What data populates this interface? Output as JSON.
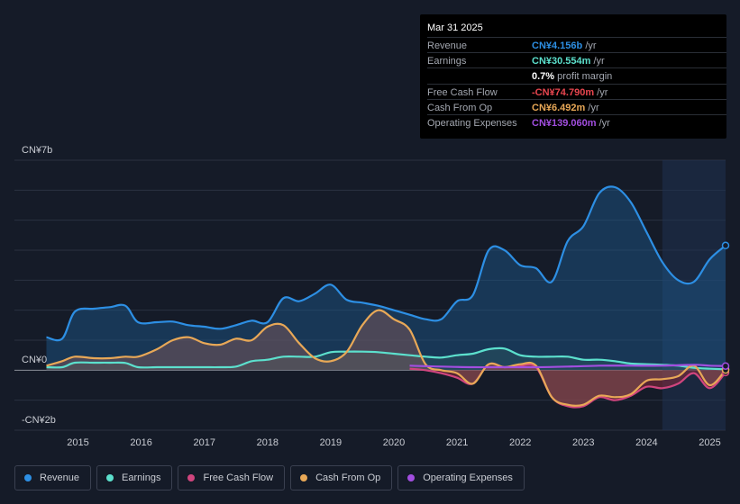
{
  "tooltip": {
    "date": "Mar 31 2025",
    "rows": [
      {
        "label": "Revenue",
        "value": "CN¥4.156b",
        "unit": "/yr",
        "color": "#2d8fe4"
      },
      {
        "label": "Earnings",
        "value": "CN¥30.554m",
        "unit": "/yr",
        "color": "#5ce0cd"
      },
      {
        "label": "",
        "value": "0.7%",
        "unit": "profit margin",
        "color": "#ffffff"
      },
      {
        "label": "Free Cash Flow",
        "value": "-CN¥74.790m",
        "unit": "/yr",
        "color": "#e8464f"
      },
      {
        "label": "Cash From Op",
        "value": "CN¥6.492m",
        "unit": "/yr",
        "color": "#e8a857"
      },
      {
        "label": "Operating Expenses",
        "value": "CN¥139.060m",
        "unit": "/yr",
        "color": "#a24ee0"
      }
    ]
  },
  "legend": [
    {
      "label": "Revenue",
      "color": "#2d8fe4"
    },
    {
      "label": "Earnings",
      "color": "#5ce0cd"
    },
    {
      "label": "Free Cash Flow",
      "color": "#d0457e"
    },
    {
      "label": "Cash From Op",
      "color": "#e8a857"
    },
    {
      "label": "Operating Expenses",
      "color": "#a24ee0"
    }
  ],
  "chart_data": {
    "type": "area",
    "ylim": [
      -2,
      7
    ],
    "y_tick_labels": [
      {
        "value": 7,
        "label": "CN¥7b"
      },
      {
        "value": 0,
        "label": "CN¥0"
      },
      {
        "value": -2,
        "label": "-CN¥2b"
      }
    ],
    "x_tick_labels": [
      "2015",
      "2016",
      "2017",
      "2018",
      "2019",
      "2020",
      "2021",
      "2022",
      "2023",
      "2024",
      "2025"
    ],
    "x_tick_values": [
      2015,
      2016,
      2017,
      2018,
      2019,
      2020,
      2021,
      2022,
      2023,
      2024,
      2025
    ],
    "xlim": [
      2014.45,
      2025.25
    ],
    "highlight_start": 2024.25,
    "series": [
      {
        "name": "Revenue",
        "color": "#2d8fe4",
        "points": [
          [
            2014.5,
            1.1
          ],
          [
            2014.75,
            1.05
          ],
          [
            2014.95,
            1.95
          ],
          [
            2015.25,
            2.05
          ],
          [
            2015.5,
            2.1
          ],
          [
            2015.75,
            2.15
          ],
          [
            2015.95,
            1.6
          ],
          [
            2016.25,
            1.6
          ],
          [
            2016.5,
            1.62
          ],
          [
            2016.75,
            1.5
          ],
          [
            2017.0,
            1.45
          ],
          [
            2017.25,
            1.38
          ],
          [
            2017.5,
            1.5
          ],
          [
            2017.75,
            1.65
          ],
          [
            2018.0,
            1.6
          ],
          [
            2018.25,
            2.4
          ],
          [
            2018.5,
            2.3
          ],
          [
            2018.75,
            2.55
          ],
          [
            2019.0,
            2.85
          ],
          [
            2019.25,
            2.35
          ],
          [
            2019.5,
            2.25
          ],
          [
            2019.75,
            2.15
          ],
          [
            2020.0,
            2.0
          ],
          [
            2020.25,
            1.85
          ],
          [
            2020.5,
            1.7
          ],
          [
            2020.75,
            1.7
          ],
          [
            2021.0,
            2.3
          ],
          [
            2021.25,
            2.5
          ],
          [
            2021.5,
            4.0
          ],
          [
            2021.75,
            4.0
          ],
          [
            2022.0,
            3.5
          ],
          [
            2022.25,
            3.4
          ],
          [
            2022.5,
            2.95
          ],
          [
            2022.75,
            4.3
          ],
          [
            2023.0,
            4.8
          ],
          [
            2023.25,
            5.9
          ],
          [
            2023.5,
            6.1
          ],
          [
            2023.75,
            5.6
          ],
          [
            2024.0,
            4.6
          ],
          [
            2024.25,
            3.6
          ],
          [
            2024.5,
            3.0
          ],
          [
            2024.75,
            2.95
          ],
          [
            2025.0,
            3.7
          ],
          [
            2025.25,
            4.156
          ]
        ]
      },
      {
        "name": "Earnings",
        "color": "#5ce0cd",
        "points": [
          [
            2014.5,
            0.1
          ],
          [
            2014.75,
            0.1
          ],
          [
            2014.95,
            0.25
          ],
          [
            2015.25,
            0.25
          ],
          [
            2015.5,
            0.25
          ],
          [
            2015.75,
            0.24
          ],
          [
            2015.95,
            0.1
          ],
          [
            2016.25,
            0.1
          ],
          [
            2016.5,
            0.1
          ],
          [
            2016.75,
            0.1
          ],
          [
            2017.0,
            0.1
          ],
          [
            2017.25,
            0.1
          ],
          [
            2017.5,
            0.12
          ],
          [
            2017.75,
            0.3
          ],
          [
            2018.0,
            0.35
          ],
          [
            2018.25,
            0.45
          ],
          [
            2018.5,
            0.45
          ],
          [
            2018.75,
            0.45
          ],
          [
            2019.0,
            0.6
          ],
          [
            2019.25,
            0.62
          ],
          [
            2019.5,
            0.62
          ],
          [
            2019.75,
            0.6
          ],
          [
            2020.0,
            0.55
          ],
          [
            2020.25,
            0.5
          ],
          [
            2020.5,
            0.45
          ],
          [
            2020.75,
            0.42
          ],
          [
            2021.0,
            0.5
          ],
          [
            2021.25,
            0.55
          ],
          [
            2021.5,
            0.7
          ],
          [
            2021.75,
            0.72
          ],
          [
            2022.0,
            0.5
          ],
          [
            2022.25,
            0.45
          ],
          [
            2022.5,
            0.45
          ],
          [
            2022.75,
            0.45
          ],
          [
            2023.0,
            0.35
          ],
          [
            2023.25,
            0.35
          ],
          [
            2023.5,
            0.3
          ],
          [
            2023.75,
            0.22
          ],
          [
            2024.0,
            0.2
          ],
          [
            2024.25,
            0.18
          ],
          [
            2024.5,
            0.15
          ],
          [
            2024.75,
            0.08
          ],
          [
            2025.0,
            0.05
          ],
          [
            2025.25,
            0.031
          ]
        ]
      },
      {
        "name": "Free Cash Flow",
        "color": "#d0457e",
        "points": [
          [
            2020.25,
            0.05
          ],
          [
            2020.5,
            0.0
          ],
          [
            2020.75,
            -0.1
          ],
          [
            2021.0,
            -0.25
          ],
          [
            2021.25,
            -0.45
          ],
          [
            2021.5,
            0.2
          ],
          [
            2021.75,
            0.1
          ],
          [
            2022.0,
            0.15
          ],
          [
            2022.25,
            0.1
          ],
          [
            2022.5,
            -0.9
          ],
          [
            2022.75,
            -1.2
          ],
          [
            2023.0,
            -1.2
          ],
          [
            2023.25,
            -0.9
          ],
          [
            2023.5,
            -1.0
          ],
          [
            2023.75,
            -0.85
          ],
          [
            2024.0,
            -0.55
          ],
          [
            2024.25,
            -0.6
          ],
          [
            2024.5,
            -0.45
          ],
          [
            2024.75,
            -0.1
          ],
          [
            2025.0,
            -0.6
          ],
          [
            2025.25,
            -0.075
          ]
        ]
      },
      {
        "name": "Cash From Op",
        "color": "#e8a857",
        "points": [
          [
            2014.5,
            0.15
          ],
          [
            2014.75,
            0.3
          ],
          [
            2014.95,
            0.45
          ],
          [
            2015.25,
            0.4
          ],
          [
            2015.5,
            0.4
          ],
          [
            2015.75,
            0.45
          ],
          [
            2015.95,
            0.45
          ],
          [
            2016.25,
            0.7
          ],
          [
            2016.5,
            1.0
          ],
          [
            2016.75,
            1.1
          ],
          [
            2017.0,
            0.9
          ],
          [
            2017.25,
            0.85
          ],
          [
            2017.5,
            1.05
          ],
          [
            2017.75,
            1.0
          ],
          [
            2018.0,
            1.45
          ],
          [
            2018.25,
            1.5
          ],
          [
            2018.5,
            0.9
          ],
          [
            2018.75,
            0.4
          ],
          [
            2019.0,
            0.3
          ],
          [
            2019.25,
            0.6
          ],
          [
            2019.5,
            1.5
          ],
          [
            2019.75,
            2.0
          ],
          [
            2020.0,
            1.7
          ],
          [
            2020.25,
            1.35
          ],
          [
            2020.5,
            0.2
          ],
          [
            2020.75,
            0.0
          ],
          [
            2021.0,
            -0.1
          ],
          [
            2021.25,
            -0.45
          ],
          [
            2021.5,
            0.2
          ],
          [
            2021.75,
            0.1
          ],
          [
            2022.0,
            0.2
          ],
          [
            2022.25,
            0.15
          ],
          [
            2022.5,
            -0.9
          ],
          [
            2022.75,
            -1.15
          ],
          [
            2023.0,
            -1.15
          ],
          [
            2023.25,
            -0.85
          ],
          [
            2023.5,
            -0.9
          ],
          [
            2023.75,
            -0.8
          ],
          [
            2024.0,
            -0.35
          ],
          [
            2024.25,
            -0.3
          ],
          [
            2024.5,
            -0.2
          ],
          [
            2024.75,
            0.15
          ],
          [
            2025.0,
            -0.5
          ],
          [
            2025.25,
            0.006
          ]
        ]
      },
      {
        "name": "Operating Expenses",
        "color": "#a24ee0",
        "points": [
          [
            2020.25,
            0.15
          ],
          [
            2020.75,
            0.12
          ],
          [
            2021.25,
            0.1
          ],
          [
            2021.75,
            0.1
          ],
          [
            2022.25,
            0.1
          ],
          [
            2022.75,
            0.12
          ],
          [
            2023.25,
            0.15
          ],
          [
            2023.75,
            0.15
          ],
          [
            2024.25,
            0.15
          ],
          [
            2024.75,
            0.18
          ],
          [
            2025.0,
            0.15
          ],
          [
            2025.25,
            0.139
          ]
        ]
      }
    ]
  }
}
